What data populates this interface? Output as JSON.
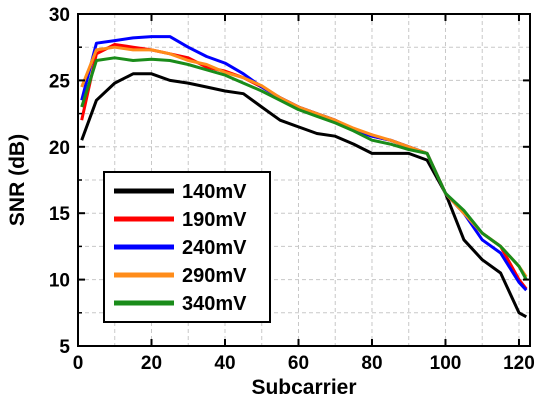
{
  "chart_data": {
    "type": "line",
    "title": "",
    "xlabel": "Subcarrier",
    "ylabel": "SNR (dB)",
    "xlim": [
      0,
      123
    ],
    "ylim": [
      5,
      30
    ],
    "xticks": [
      0,
      20,
      40,
      60,
      80,
      100,
      120
    ],
    "yticks": [
      5,
      10,
      15,
      20,
      25,
      30
    ],
    "grid": true,
    "legend_position": "bottom-left",
    "x": [
      1,
      5,
      10,
      15,
      20,
      25,
      30,
      35,
      40,
      45,
      50,
      55,
      60,
      65,
      70,
      75,
      80,
      85,
      90,
      95,
      100,
      105,
      110,
      115,
      120,
      122
    ],
    "series": [
      {
        "name": "140mV",
        "color": "#000000",
        "values": [
          20.5,
          23.5,
          24.8,
          25.5,
          25.5,
          25.0,
          24.8,
          24.5,
          24.2,
          24.0,
          23.0,
          22.0,
          21.5,
          21.0,
          20.8,
          20.2,
          19.5,
          19.5,
          19.5,
          19.0,
          16.5,
          13.0,
          11.5,
          10.5,
          7.5,
          7.2
        ]
      },
      {
        "name": "190mV",
        "color": "#ff0000",
        "values": [
          22.0,
          27.0,
          27.7,
          27.5,
          27.3,
          27.0,
          26.7,
          26.0,
          25.7,
          25.2,
          24.5,
          23.7,
          23.0,
          22.5,
          22.0,
          21.3,
          20.8,
          20.5,
          20.0,
          19.5,
          16.5,
          15.0,
          13.5,
          12.5,
          10.0,
          9.3
        ]
      },
      {
        "name": "240mV",
        "color": "#0000ff",
        "values": [
          23.5,
          27.8,
          28.0,
          28.2,
          28.3,
          28.3,
          27.5,
          26.8,
          26.3,
          25.5,
          24.5,
          23.7,
          23.0,
          22.5,
          22.0,
          21.3,
          20.8,
          20.5,
          20.0,
          19.5,
          16.5,
          15.0,
          13.0,
          12.0,
          9.8,
          9.2
        ]
      },
      {
        "name": "290mV",
        "color": "#ff8c1a",
        "values": [
          24.5,
          27.3,
          27.5,
          27.3,
          27.3,
          27.0,
          26.5,
          26.2,
          25.6,
          25.2,
          24.6,
          23.7,
          23.0,
          22.5,
          22.0,
          21.4,
          20.9,
          20.5,
          20.0,
          19.5,
          16.5,
          15.0,
          13.5,
          12.5,
          11.0,
          10.2
        ]
      },
      {
        "name": "340mV",
        "color": "#1a8c1a",
        "values": [
          23.0,
          26.5,
          26.7,
          26.5,
          26.6,
          26.5,
          26.2,
          25.8,
          25.4,
          24.8,
          24.2,
          23.5,
          22.8,
          22.3,
          21.8,
          21.2,
          20.5,
          20.2,
          19.8,
          19.5,
          16.5,
          15.2,
          13.5,
          12.5,
          11.0,
          10.0
        ]
      }
    ]
  }
}
